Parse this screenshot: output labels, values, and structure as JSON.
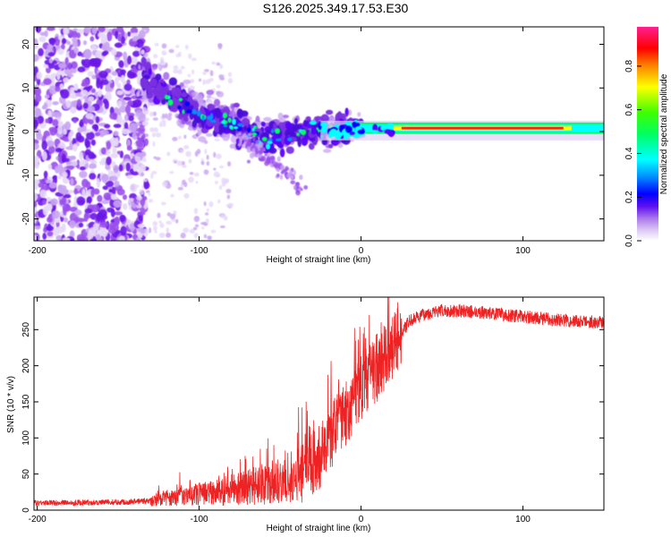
{
  "page_title": "S126.2025.349.17.53.E30",
  "chart_data": [
    {
      "type": "heatmap",
      "title": "S126.2025.349.17.53.E30",
      "xlabel": "Height of straight line (km)",
      "ylabel": "Frequency (Hz)",
      "xlim": [
        -202,
        150
      ],
      "ylim": [
        -25,
        24
      ],
      "xticks": [
        -200,
        -100,
        0,
        100
      ],
      "yticks": [
        -20,
        -10,
        0,
        10,
        20
      ],
      "grid": false,
      "description_series": [
        {
          "name": "scattered noise",
          "x_range": [
            -202,
            -135
          ],
          "y_range": [
            -25,
            24
          ]
        },
        {
          "name": "descending band",
          "points": [
            [
              -135,
              13
            ],
            [
              -120,
              8
            ],
            [
              -100,
              4
            ],
            [
              -80,
              2
            ],
            [
              -60,
              -2
            ],
            [
              -40,
              0
            ],
            [
              -20,
              0
            ],
            [
              0,
              1
            ]
          ]
        },
        {
          "name": "stable line",
          "x_range": [
            0,
            150
          ],
          "y": 0.8
        }
      ],
      "colorbar": {
        "label": "Normalized spectral amplitude",
        "ticks": [
          "0.0",
          "0.2",
          "0.4",
          "0.6",
          "0.8"
        ],
        "range": [
          0,
          0.98
        ],
        "colors": [
          "#ffffff",
          "#dcc8f4",
          "#8c30e0",
          "#5a00ff",
          "#0000ff",
          "#0090ff",
          "#00ffff",
          "#00ff60",
          "#40ff00",
          "#ffff00",
          "#ff8000",
          "#ff0000",
          "#ff1060",
          "#ff2090"
        ]
      }
    },
    {
      "type": "line",
      "xlabel": "Height of straight line (km)",
      "ylabel": "SNR (10 * v/v)",
      "xlim": [
        -202,
        150
      ],
      "ylim": [
        0,
        295
      ],
      "xticks": [
        -200,
        -100,
        0,
        100
      ],
      "yticks": [
        0,
        50,
        100,
        150,
        200,
        250
      ],
      "grid": false,
      "color": "#ee2222",
      "trend": {
        "x": [
          -202,
          -150,
          -130,
          -115,
          -100,
          -85,
          -70,
          -55,
          -45,
          -35,
          -25,
          -20,
          -15,
          -10,
          -5,
          0,
          5,
          10,
          15,
          20,
          25,
          30,
          40,
          50,
          60,
          75,
          90,
          110,
          130,
          150
        ],
        "y": [
          10,
          11,
          13,
          18,
          22,
          26,
          32,
          36,
          40,
          55,
          75,
          95,
          115,
          130,
          150,
          170,
          185,
          195,
          210,
          225,
          245,
          262,
          272,
          276,
          276,
          274,
          270,
          266,
          262,
          260
        ]
      }
    }
  ]
}
